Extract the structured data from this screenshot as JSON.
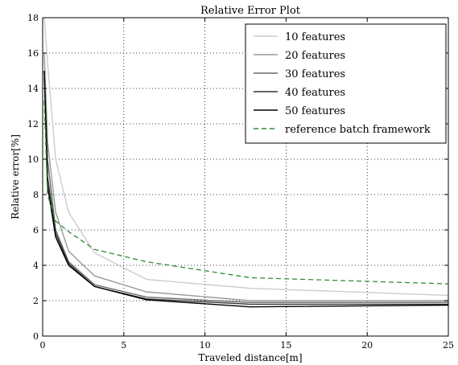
{
  "chart_data": {
    "type": "line",
    "title": "Relative Error Plot",
    "xlabel": "Traveled distance[m]",
    "ylabel": "Relative error[%]",
    "xlim": [
      0,
      25
    ],
    "ylim": [
      0,
      18
    ],
    "xticks": [
      0,
      5,
      10,
      15,
      20,
      25
    ],
    "yticks": [
      0,
      2,
      4,
      6,
      8,
      10,
      12,
      14,
      16,
      18
    ],
    "grid": true,
    "legend_position": "top-right",
    "series": [
      {
        "name": "10 features",
        "color": "#cccccc",
        "dash": "solid",
        "x": [
          0.1,
          0.3,
          0.8,
          1.6,
          3.2,
          6.4,
          12.8,
          25
        ],
        "y": [
          18.0,
          15.5,
          10.0,
          7.0,
          4.7,
          3.2,
          2.7,
          2.3
        ]
      },
      {
        "name": "20 features",
        "color": "#999999",
        "dash": "solid",
        "x": [
          0.1,
          0.3,
          0.8,
          1.6,
          3.2,
          6.4,
          12.8,
          25
        ],
        "y": [
          16.0,
          11.0,
          7.0,
          4.8,
          3.4,
          2.5,
          2.0,
          2.0
        ]
      },
      {
        "name": "30 features",
        "color": "#666666",
        "dash": "solid",
        "x": [
          0.1,
          0.3,
          0.8,
          1.6,
          3.2,
          6.4,
          12.8,
          25
        ],
        "y": [
          15.0,
          10.0,
          6.0,
          4.2,
          2.9,
          2.2,
          1.9,
          1.9
        ]
      },
      {
        "name": "40 features",
        "color": "#333333",
        "dash": "solid",
        "x": [
          0.1,
          0.3,
          0.8,
          1.6,
          3.2,
          6.4,
          12.8,
          25
        ],
        "y": [
          15.0,
          9.0,
          5.8,
          4.1,
          2.8,
          2.1,
          1.8,
          1.8
        ]
      },
      {
        "name": "50 features",
        "color": "#000000",
        "dash": "solid",
        "x": [
          0.1,
          0.3,
          0.8,
          1.6,
          3.2,
          6.4,
          12.8,
          25
        ],
        "y": [
          15.0,
          8.5,
          5.6,
          4.0,
          2.8,
          2.05,
          1.65,
          1.75
        ]
      },
      {
        "name": "reference batch framework",
        "color": "#2e8b2e",
        "dash": "dashed",
        "x": [
          0.1,
          0.3,
          0.8,
          1.6,
          3.2,
          6.4,
          12.8,
          25
        ],
        "y": [
          13.3,
          8.0,
          6.5,
          5.9,
          4.9,
          4.2,
          3.3,
          2.95
        ]
      }
    ]
  }
}
